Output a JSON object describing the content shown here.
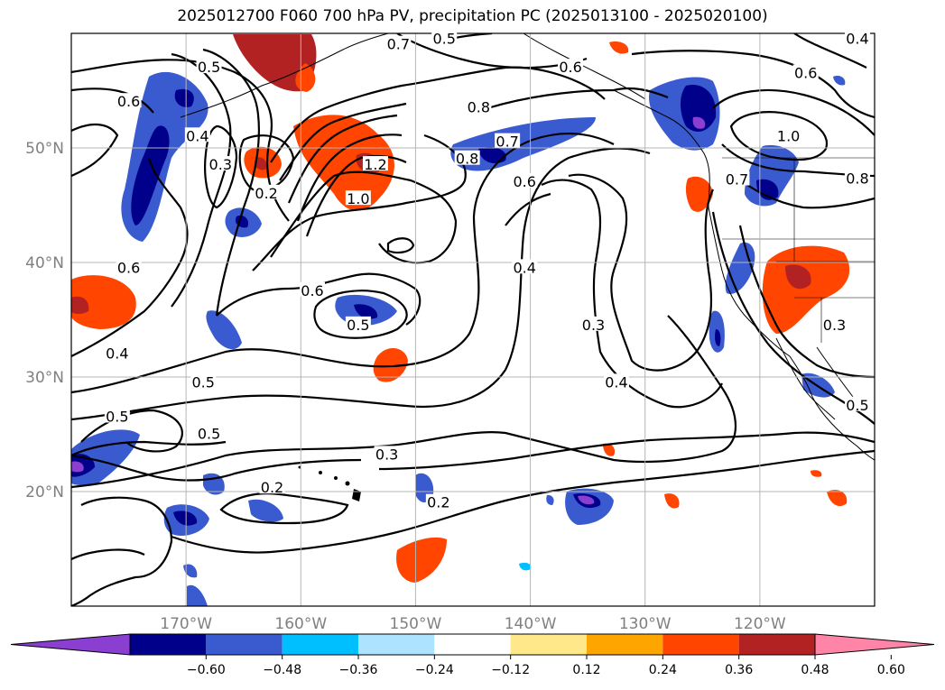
{
  "title": "2025012700 F060 700 hPa PV, precipitation PC (2025013100 - 2025020100)",
  "map": {
    "lat_labels": [
      "50°N",
      "40°N",
      "30°N",
      "20°N"
    ],
    "lon_labels": [
      "170°W",
      "160°W",
      "150°W",
      "140°W",
      "130°W",
      "120°W"
    ],
    "grid": true,
    "fill_colors": {
      "neg_strong": "#00008b",
      "neg_mid": "#3a5bd0",
      "neg_light": "#00bfff",
      "neg_extreme": "#8a3fd1",
      "pos_red": "#ff4500",
      "pos_darkred": "#b22222",
      "pos_orange": "#ffa500",
      "pos_yellow": "#ffe08a"
    },
    "contour_labels": [
      {
        "text": "0.5",
        "lon": -168.0,
        "lat": 57.0
      },
      {
        "text": "0.6",
        "lon": -175.0,
        "lat": 54.0
      },
      {
        "text": "0.4",
        "lon": -169.0,
        "lat": 51.0
      },
      {
        "text": "0.3",
        "lon": -167.0,
        "lat": 48.5
      },
      {
        "text": "0.2",
        "lon": -163.0,
        "lat": 46.0
      },
      {
        "text": "1.2",
        "lon": -153.5,
        "lat": 48.5
      },
      {
        "text": "1.0",
        "lon": -155.0,
        "lat": 45.5
      },
      {
        "text": "0.6",
        "lon": -159.0,
        "lat": 37.5
      },
      {
        "text": "0.5",
        "lon": -155.0,
        "lat": 34.5
      },
      {
        "text": "0.6",
        "lon": -175.0,
        "lat": 39.5
      },
      {
        "text": "0.4",
        "lon": -176.0,
        "lat": 32.0
      },
      {
        "text": "0.5",
        "lon": -168.5,
        "lat": 29.5
      },
      {
        "text": "0.5",
        "lon": -176.0,
        "lat": 26.5
      },
      {
        "text": "0.5",
        "lon": -168.0,
        "lat": 25.0
      },
      {
        "text": "0.3",
        "lon": -152.5,
        "lat": 23.2
      },
      {
        "text": "0.2",
        "lon": -162.5,
        "lat": 20.3
      },
      {
        "text": "0.2",
        "lon": -148.0,
        "lat": 19.0
      },
      {
        "text": "0.5",
        "lon": -147.5,
        "lat": 59.5
      },
      {
        "text": "0.7",
        "lon": -151.5,
        "lat": 59.0
      },
      {
        "text": "0.6",
        "lon": -136.5,
        "lat": 57.0
      },
      {
        "text": "0.8",
        "lon": -144.5,
        "lat": 53.5
      },
      {
        "text": "0.8",
        "lon": -145.5,
        "lat": 49.0
      },
      {
        "text": "0.7",
        "lon": -142.0,
        "lat": 50.5
      },
      {
        "text": "0.6",
        "lon": -140.5,
        "lat": 47.0
      },
      {
        "text": "0.4",
        "lon": -140.5,
        "lat": 39.5
      },
      {
        "text": "0.3",
        "lon": -134.5,
        "lat": 34.5
      },
      {
        "text": "0.4",
        "lon": -132.5,
        "lat": 29.5
      },
      {
        "text": "1.0",
        "lon": -117.5,
        "lat": 51.0
      },
      {
        "text": "0.8",
        "lon": -111.5,
        "lat": 47.3
      },
      {
        "text": "0.7",
        "lon": -122.0,
        "lat": 47.2
      },
      {
        "text": "0.6",
        "lon": -116.0,
        "lat": 56.5
      },
      {
        "text": "0.4",
        "lon": -111.5,
        "lat": 59.5
      },
      {
        "text": "0.3",
        "lon": -113.5,
        "lat": 34.5
      },
      {
        "text": "0.5",
        "lon": -111.5,
        "lat": 27.5
      }
    ]
  },
  "colorbar": {
    "ticks": [
      "−0.60",
      "−0.48",
      "−0.36",
      "−0.24",
      "−0.12",
      "0.12",
      "0.24",
      "0.36",
      "0.48",
      "0.60"
    ],
    "colors": [
      "#8a3fd1",
      "#00008b",
      "#3a5bd0",
      "#00bfff",
      "#aee3ff",
      "#ffffff",
      "#ffe88a",
      "#ffa500",
      "#ff4500",
      "#b22222",
      "#ff85a8"
    ]
  }
}
